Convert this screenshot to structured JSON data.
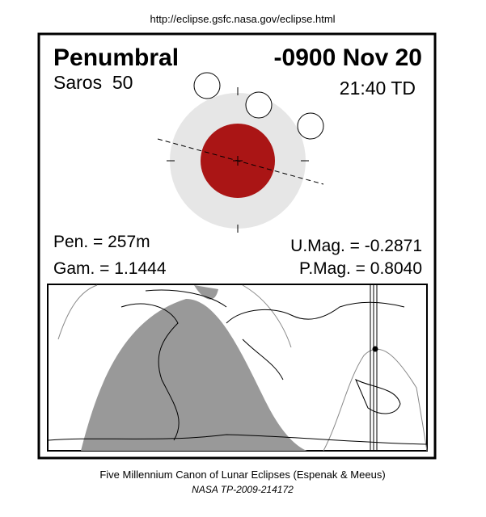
{
  "header": {
    "url": "http://eclipse.gsfc.nasa.gov/eclipse.html"
  },
  "eclipse": {
    "type": "Penumbral",
    "date": "-0900 Nov 20",
    "saros": "Saros  50",
    "time": "21:40 TD",
    "pen": "Pen. = 257m",
    "gam": "Gam. = 1.1444",
    "umag": "U.Mag. = -0.2871",
    "pmag": "P.Mag. = 0.8040"
  },
  "footer": {
    "line1": "Five Millennium Canon of Lunar Eclipses (Espenak & Meeus)",
    "line2": "NASA TP-2009-214172"
  }
}
